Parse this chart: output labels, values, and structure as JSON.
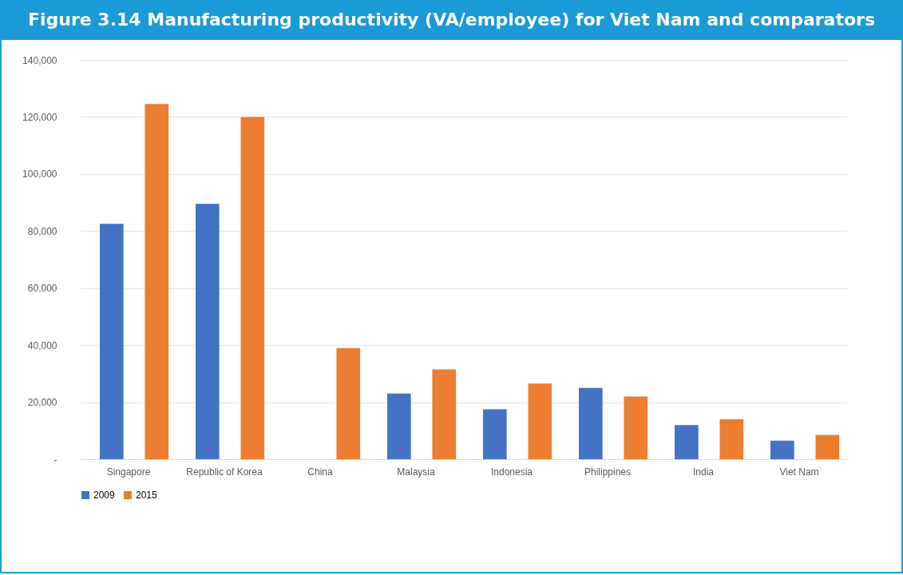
{
  "chart_data": {
    "type": "bar",
    "title": "Figure 3.14 Manufacturing productivity (VA/employee) for Viet Nam and comparators",
    "categories": [
      "Singapore",
      "Republic of Korea",
      "China",
      "Malaysia",
      "Indonesia",
      "Philippines",
      "India",
      "Viet Nam"
    ],
    "series": [
      {
        "name": "2009",
        "color": "#4472c4",
        "values": [
          82500,
          89500,
          null,
          23000,
          17500,
          25000,
          12000,
          6500
        ]
      },
      {
        "name": "2015",
        "color": "#ed7d31",
        "values": [
          124500,
          120000,
          39000,
          31500,
          26500,
          22000,
          14000,
          8500
        ]
      }
    ],
    "ylim": [
      0,
      140000
    ],
    "yticks": [
      {
        "value": 0,
        "label": "-"
      },
      {
        "value": 20000,
        "label": "20,000"
      },
      {
        "value": 40000,
        "label": "40,000"
      },
      {
        "value": 60000,
        "label": "60,000"
      },
      {
        "value": 80000,
        "label": "80,000"
      },
      {
        "value": 100000,
        "label": "100,000"
      },
      {
        "value": 120000,
        "label": "120,000"
      },
      {
        "value": 140000,
        "label": "140,000"
      }
    ],
    "grid": "y",
    "legend": "bottom"
  }
}
